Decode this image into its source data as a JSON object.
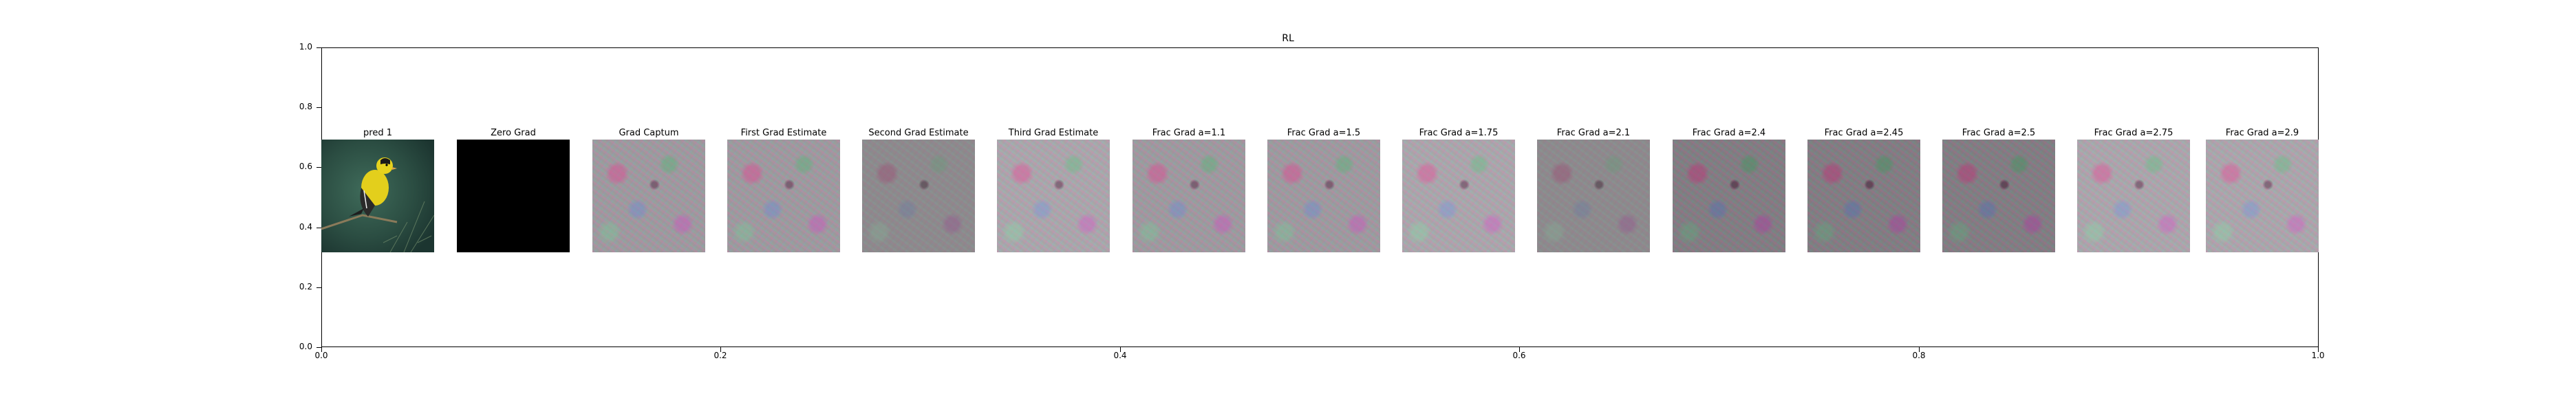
{
  "figure": {
    "title": "RL",
    "y_ticks": [
      "0.0",
      "0.2",
      "0.4",
      "0.6",
      "0.8",
      "1.0"
    ],
    "x_ticks": [
      "0.0",
      "0.2",
      "0.4",
      "0.6",
      "0.8",
      "1.0"
    ]
  },
  "panels": [
    {
      "title": "pred 1",
      "kind": "bird"
    },
    {
      "title": "Zero Grad",
      "kind": "black"
    },
    {
      "title": "Grad Captum",
      "kind": "noise"
    },
    {
      "title": "First Grad Estimate",
      "kind": "noise"
    },
    {
      "title": "Second Grad Estimate",
      "kind": "noise-muted"
    },
    {
      "title": "Third Grad Estimate",
      "kind": "noise-light"
    },
    {
      "title": "Frac Grad a=1.1",
      "kind": "noise"
    },
    {
      "title": "Frac Grad a=1.5",
      "kind": "noise"
    },
    {
      "title": "Frac Grad a=1.75",
      "kind": "noise-light"
    },
    {
      "title": "Frac Grad a=2.1",
      "kind": "noise-muted"
    },
    {
      "title": "Frac Grad a=2.4",
      "kind": "noise-dark"
    },
    {
      "title": "Frac Grad a=2.45",
      "kind": "noise-dark"
    },
    {
      "title": "Frac Grad a=2.5",
      "kind": "noise-dark"
    },
    {
      "title": "Frac Grad a=2.75",
      "kind": "noise-light"
    },
    {
      "title": "Frac Grad a=2.9",
      "kind": "noise-light"
    }
  ]
}
